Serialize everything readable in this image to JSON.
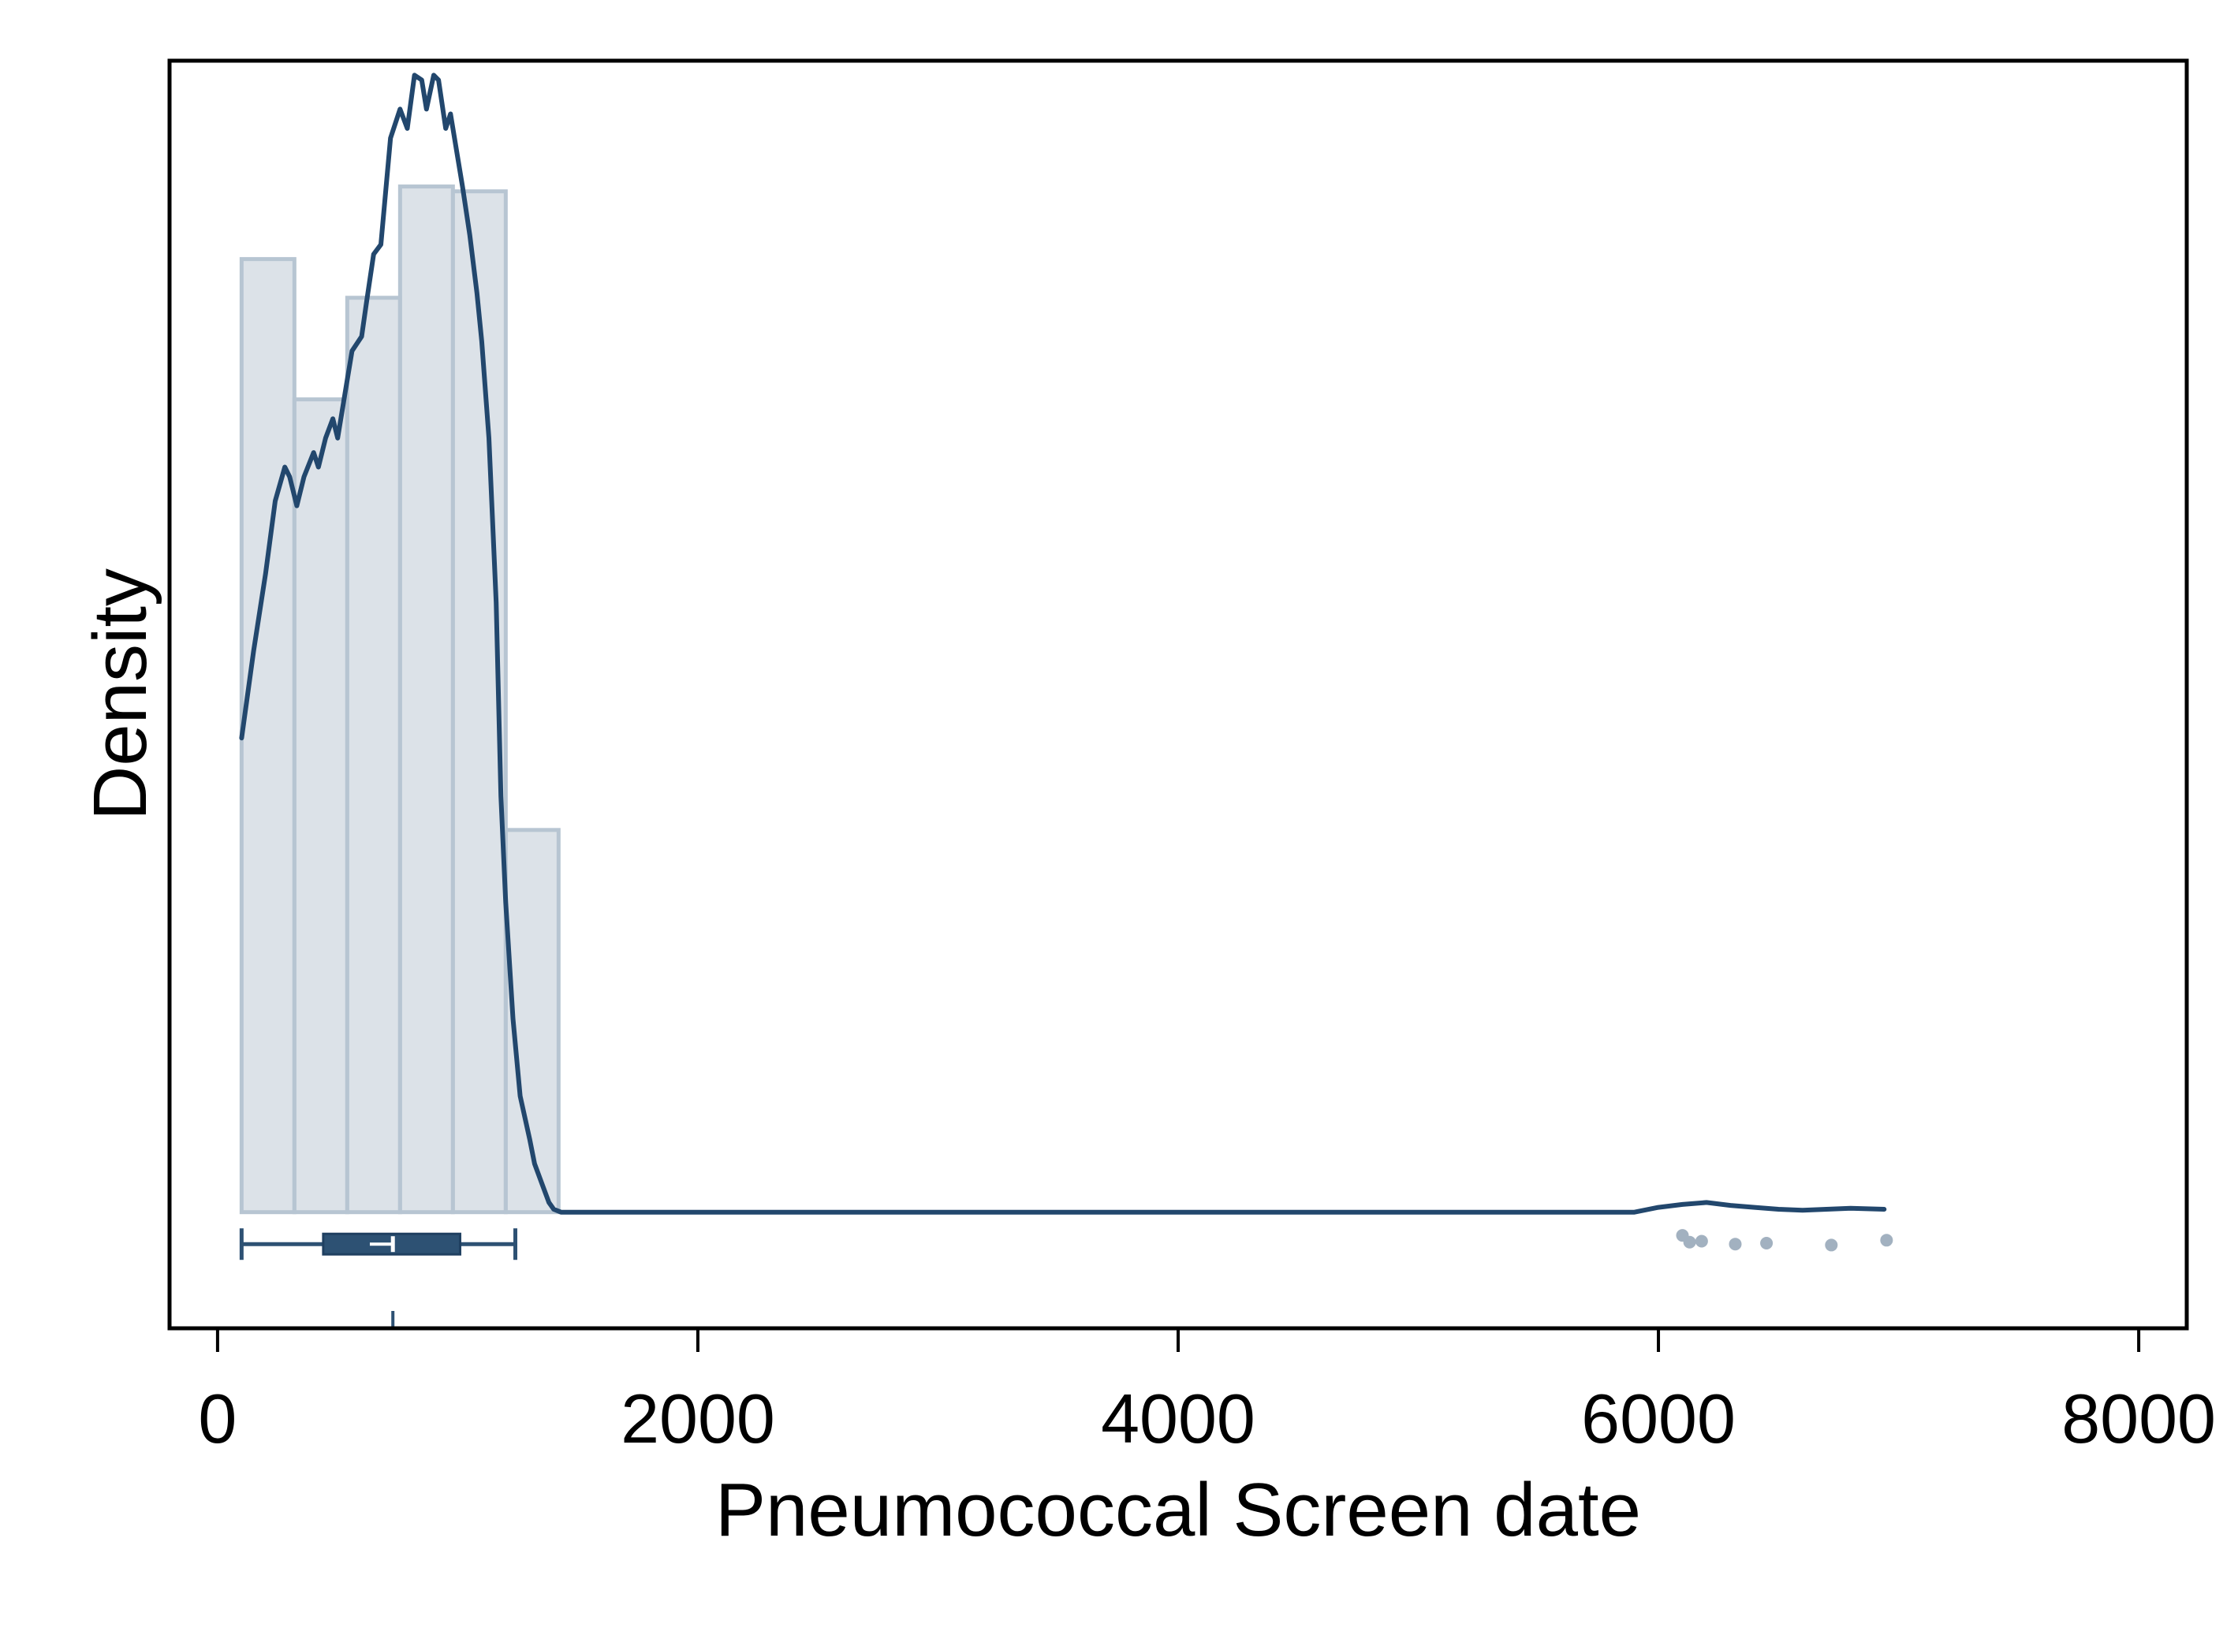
{
  "chart_data": {
    "type": "histogram",
    "title": "",
    "xlabel": "Pneumococcal Screen date",
    "ylabel": "Density",
    "xlim": [
      -200,
      8200
    ],
    "ylim": [
      -0.12,
      1.19
    ],
    "x_ticks": [
      0,
      2000,
      4000,
      6000,
      8000
    ],
    "x_tick_labels": [
      "0",
      "2000",
      "4000",
      "6000",
      "8000"
    ],
    "y_ticks_shown": false,
    "grid": false,
    "legend": "none",
    "colors": {
      "plot_background": "#dde3ea",
      "bar_fill": "#d0d8e0",
      "bar_stroke": "#b7c5d2",
      "density_line": "#22476d",
      "box": "#2d5173",
      "outlier_points": "#a2b1c0",
      "frame": "#000000"
    },
    "histogram": {
      "bin_edges": [
        100,
        320,
        540,
        760,
        980,
        1200,
        1420
      ],
      "relative_density": [
        0.985,
        0.84,
        0.945,
        1.06,
        1.055,
        0.395
      ]
    },
    "density_curve": {
      "x": [
        100,
        150,
        200,
        240,
        280,
        300,
        330,
        360,
        400,
        420,
        450,
        480,
        500,
        540,
        560,
        600,
        620,
        650,
        680,
        700,
        720,
        760,
        790,
        820,
        850,
        870,
        900,
        920,
        950,
        970,
        1000,
        1020,
        1050,
        1080,
        1100,
        1130,
        1160,
        1180,
        1200,
        1230,
        1260,
        1300,
        1320,
        1350,
        1380,
        1400,
        1430,
        1450,
        1500,
        5900,
        6000,
        6100,
        6200,
        6300,
        6400,
        6500,
        6600,
        6700,
        6800,
        6940
      ],
      "y": [
        0.49,
        0.58,
        0.66,
        0.735,
        0.77,
        0.76,
        0.73,
        0.76,
        0.785,
        0.77,
        0.8,
        0.82,
        0.8,
        0.86,
        0.89,
        0.905,
        0.94,
        0.99,
        1.0,
        1.055,
        1.11,
        1.14,
        1.12,
        1.175,
        1.17,
        1.14,
        1.175,
        1.17,
        1.12,
        1.135,
        1.09,
        1.06,
        1.01,
        0.95,
        0.9,
        0.8,
        0.63,
        0.43,
        0.32,
        0.2,
        0.12,
        0.075,
        0.05,
        0.03,
        0.01,
        0.003,
        0.0,
        0.0,
        0.0,
        0.0,
        0.005,
        0.008,
        0.01,
        0.007,
        0.005,
        0.003,
        0.002,
        0.003,
        0.004,
        0.003
      ]
    },
    "box_plot": {
      "whisker_low": 100,
      "q1": 440,
      "median": 730,
      "q3": 1010,
      "whisker_high": 1240,
      "mean": 680,
      "outliers": [
        6100,
        6130,
        6180,
        6320,
        6450,
        6720,
        6950
      ]
    }
  }
}
